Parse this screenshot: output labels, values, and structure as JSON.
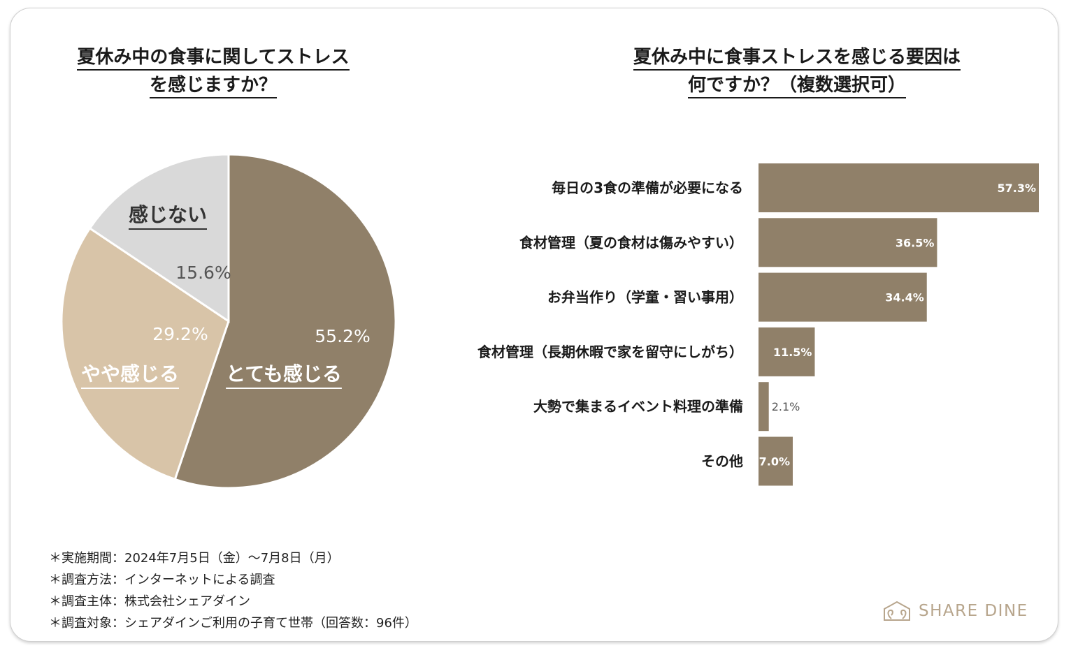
{
  "pie": {
    "title_line1": "夏休み中の食事に関してストレス",
    "title_line2": "を感じますか？"
  },
  "bar": {
    "title_line1": "夏休み中に食事ストレスを感じる要因は",
    "title_line2": "何ですか？（複数選択可）"
  },
  "chart_data": [
    {
      "type": "pie",
      "title": "夏休み中の食事に関してストレスを感じますか？",
      "slices": [
        {
          "label": "とても感じる",
          "value": 55.2,
          "value_label": "55.2%",
          "color": "#908069"
        },
        {
          "label": "やや感じる",
          "value": 29.2,
          "value_label": "29.2%",
          "color": "#d8c4a8"
        },
        {
          "label": "感じない",
          "value": 15.6,
          "value_label": "15.6%",
          "color": "#d9d9d9"
        }
      ]
    },
    {
      "type": "bar",
      "orientation": "horizontal",
      "title": "夏休み中に食事ストレスを感じる要因は何ですか？（複数選択可）",
      "categories": [
        "毎日の3食の準備が必要になる",
        "食材管理（夏の食材は傷みやすい）",
        "お弁当作り（学童・習い事用）",
        "食材管理（長期休暇で家を留守にしがち）",
        "大勢で集まるイベント料理の準備",
        "その他"
      ],
      "values": [
        57.3,
        36.5,
        34.4,
        11.5,
        2.1,
        7.0
      ],
      "value_labels": [
        "57.3%",
        "36.5%",
        "34.4%",
        "11.5%",
        "2.1%",
        "7.0%"
      ],
      "color": "#908069",
      "xlim": [
        0,
        57.3
      ]
    }
  ],
  "notes": [
    "＊実施期間：2024年7月5日（金）～7月8日（月）",
    "＊調査方法：インターネットによる調査",
    "＊調査主体：株式会社シェアダイン",
    "＊調査対象：シェアダインご利用の子育て世帯（回答数：96件）"
  ],
  "logo": {
    "text": "SHARE DINE",
    "icon": "share-dine-logo-icon",
    "color": "#b7a58c"
  }
}
